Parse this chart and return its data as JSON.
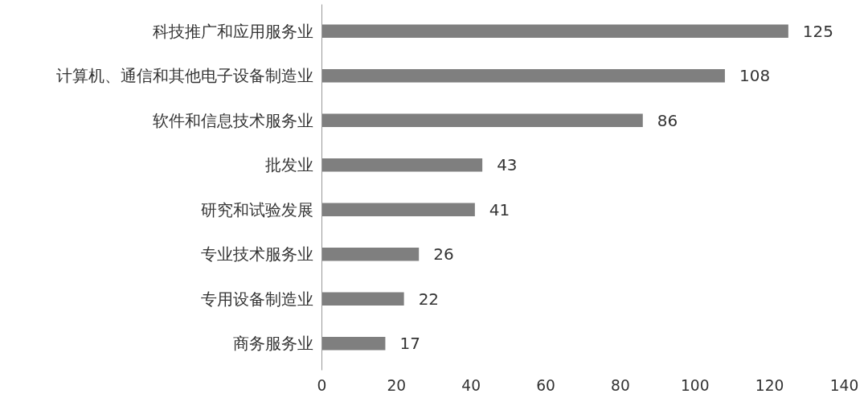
{
  "chart_data": {
    "type": "bar",
    "orientation": "horizontal",
    "categories": [
      "科技推广和应用服务业",
      "计算机、通信和其他电子设备制造业",
      "软件和信息技术服务业",
      "批发业",
      "研究和试验发展",
      "专业技术服务业",
      "专用设备制造业",
      "商务服务业"
    ],
    "values": [
      125,
      108,
      86,
      43,
      41,
      26,
      22,
      17
    ],
    "color": "#7f7f7f",
    "xlim": [
      0,
      140
    ],
    "xticks": [
      0,
      20,
      40,
      60,
      80,
      100,
      120,
      140
    ],
    "grid": false,
    "data_labels": true
  }
}
